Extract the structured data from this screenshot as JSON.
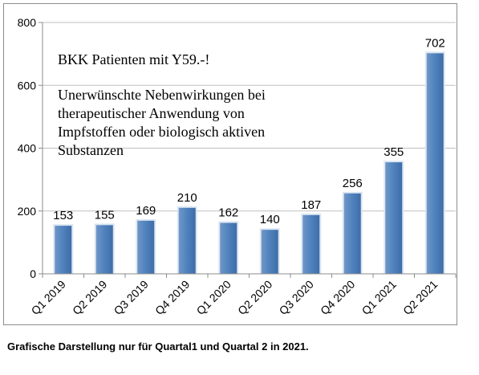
{
  "chart_data": {
    "type": "bar",
    "categories": [
      "Q1 2019",
      "Q2 2019",
      "Q3 2019",
      "Q4 2019",
      "Q1 2020",
      "Q2 2020",
      "Q3 2020",
      "Q4 2020",
      "Q1 2021",
      "Q2 2021"
    ],
    "values": [
      153,
      155,
      169,
      210,
      162,
      140,
      187,
      256,
      355,
      702
    ],
    "ylim": [
      0,
      800
    ],
    "yticks": [
      0,
      200,
      400,
      600,
      800
    ],
    "grid": true,
    "legend": "none",
    "bar_color": "#4f81bd",
    "annotation": {
      "line1": "BKK Patienten mit Y59.-!",
      "line2": "Unerwünschte Nebenwirkungen bei",
      "line3": "therapeutischer Anwendung von",
      "line4": "Impfstoffen oder biologisch aktiven",
      "line5": "Substanzen"
    }
  },
  "caption": "Grafische Darstellung nur für Quartal1 und Quartal 2 in 2021."
}
